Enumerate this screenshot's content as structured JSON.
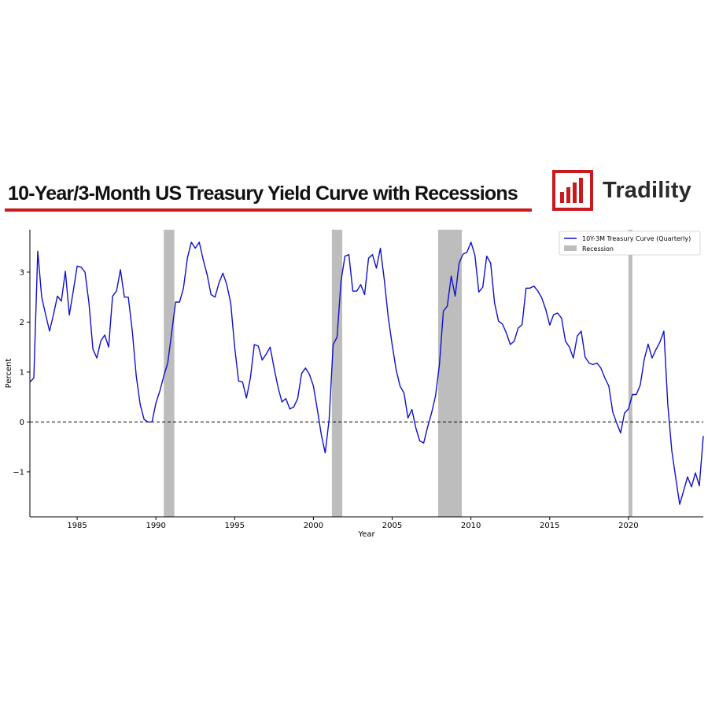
{
  "brand": {
    "name": "Tradility",
    "accent_color": "#c8191f"
  },
  "chart_data": {
    "type": "line",
    "title": "10-Year/3-Month US Treasury Yield Curve with Recessions",
    "xlabel": "Year",
    "ylabel": "Percent",
    "xlim": [
      1982.0,
      2024.75
    ],
    "ylim": [
      -1.9,
      3.85
    ],
    "x_ticks": [
      1985,
      1990,
      1995,
      2000,
      2005,
      2010,
      2015,
      2020
    ],
    "y_ticks": [
      -1,
      0,
      1,
      2,
      3
    ],
    "x_tick_labels": [
      "1985",
      "1990",
      "1995",
      "2000",
      "2005",
      "2010",
      "2015",
      "2020"
    ],
    "y_tick_labels": [
      "−1",
      "0",
      "1",
      "2",
      "3"
    ],
    "grid": false,
    "legend_position": "top-right",
    "reference_line": {
      "y": 0,
      "style": "dashed"
    },
    "series": [
      {
        "name": "10Y-3M Treasury Curve (Quarterly)",
        "color": "#1010cc",
        "x": [
          1982.0,
          1982.25,
          1982.5,
          1982.75,
          1983.0,
          1983.25,
          1983.5,
          1983.75,
          1984.0,
          1984.25,
          1984.5,
          1984.75,
          1985.0,
          1985.25,
          1985.5,
          1985.75,
          1986.0,
          1986.25,
          1986.5,
          1986.75,
          1987.0,
          1987.25,
          1987.5,
          1987.75,
          1988.0,
          1988.25,
          1988.5,
          1988.75,
          1989.0,
          1989.25,
          1989.5,
          1989.75,
          1990.0,
          1990.25,
          1990.5,
          1990.75,
          1991.0,
          1991.25,
          1991.5,
          1991.75,
          1992.0,
          1992.25,
          1992.5,
          1992.75,
          1993.0,
          1993.25,
          1993.5,
          1993.75,
          1994.0,
          1994.25,
          1994.5,
          1994.75,
          1995.0,
          1995.25,
          1995.5,
          1995.75,
          1996.0,
          1996.25,
          1996.5,
          1996.75,
          1997.0,
          1997.25,
          1997.5,
          1997.75,
          1998.0,
          1998.25,
          1998.5,
          1998.75,
          1999.0,
          1999.25,
          1999.5,
          1999.75,
          2000.0,
          2000.25,
          2000.5,
          2000.75,
          2001.0,
          2001.25,
          2001.5,
          2001.75,
          2002.0,
          2002.25,
          2002.5,
          2002.75,
          2003.0,
          2003.25,
          2003.5,
          2003.75,
          2004.0,
          2004.25,
          2004.5,
          2004.75,
          2005.0,
          2005.25,
          2005.5,
          2005.75,
          2006.0,
          2006.25,
          2006.5,
          2006.75,
          2007.0,
          2007.25,
          2007.5,
          2007.75,
          2008.0,
          2008.25,
          2008.5,
          2008.75,
          2009.0,
          2009.25,
          2009.5,
          2009.75,
          2010.0,
          2010.25,
          2010.5,
          2010.75,
          2011.0,
          2011.25,
          2011.5,
          2011.75,
          2012.0,
          2012.25,
          2012.5,
          2012.75,
          2013.0,
          2013.25,
          2013.5,
          2013.75,
          2014.0,
          2014.25,
          2014.5,
          2014.75,
          2015.0,
          2015.25,
          2015.5,
          2015.75,
          2016.0,
          2016.25,
          2016.5,
          2016.75,
          2017.0,
          2017.25,
          2017.5,
          2017.75,
          2018.0,
          2018.25,
          2018.5,
          2018.75,
          2019.0,
          2019.25,
          2019.5,
          2019.75,
          2020.0,
          2020.25,
          2020.5,
          2020.75,
          2021.0,
          2021.25,
          2021.5,
          2021.75,
          2022.0,
          2022.25,
          2022.5,
          2022.75,
          2023.0,
          2023.25,
          2023.5,
          2023.75,
          2024.0,
          2024.25,
          2024.5,
          2024.75
        ],
        "y": [
          0.8,
          0.88,
          3.42,
          2.5,
          2.15,
          1.82,
          2.15,
          2.52,
          2.42,
          3.02,
          2.14,
          2.62,
          3.12,
          3.1,
          3.0,
          2.38,
          1.46,
          1.28,
          1.62,
          1.74,
          1.5,
          2.52,
          2.62,
          3.05,
          2.5,
          2.5,
          1.82,
          0.92,
          0.35,
          0.05,
          0.0,
          0.0,
          0.38,
          0.62,
          0.92,
          1.18,
          1.78,
          2.4,
          2.4,
          2.68,
          3.28,
          3.6,
          3.48,
          3.6,
          3.25,
          2.95,
          2.55,
          2.5,
          2.78,
          2.98,
          2.75,
          2.38,
          1.5,
          0.82,
          0.8,
          0.48,
          0.88,
          1.55,
          1.52,
          1.24,
          1.36,
          1.5,
          1.08,
          0.7,
          0.4,
          0.47,
          0.26,
          0.3,
          0.47,
          0.97,
          1.08,
          0.95,
          0.72,
          0.25,
          -0.25,
          -0.62,
          0.05,
          1.55,
          1.7,
          2.82,
          3.32,
          3.35,
          2.62,
          2.62,
          2.75,
          2.55,
          3.28,
          3.35,
          3.08,
          3.48,
          2.85,
          2.1,
          1.55,
          1.05,
          0.72,
          0.58,
          0.08,
          0.25,
          -0.12,
          -0.38,
          -0.42,
          -0.1,
          0.18,
          0.52,
          1.15,
          2.22,
          2.32,
          2.92,
          2.52,
          3.18,
          3.36,
          3.4,
          3.6,
          3.34,
          2.6,
          2.7,
          3.32,
          3.18,
          2.38,
          2.02,
          1.96,
          1.78,
          1.55,
          1.62,
          1.88,
          1.95,
          2.68,
          2.68,
          2.72,
          2.62,
          2.48,
          2.25,
          1.94,
          2.15,
          2.18,
          2.08,
          1.62,
          1.5,
          1.28,
          1.72,
          1.82,
          1.3,
          1.18,
          1.15,
          1.18,
          1.08,
          0.88,
          0.72,
          0.2,
          -0.02,
          -0.22,
          0.18,
          0.26,
          0.55,
          0.55,
          0.74,
          1.25,
          1.56,
          1.28,
          1.45,
          1.6,
          1.82,
          0.35,
          -0.58,
          -1.12,
          -1.65,
          -1.38,
          -1.1,
          -1.3,
          -1.02,
          -1.28,
          -0.28
        ]
      }
    ],
    "recessions": {
      "name": "Recession",
      "color": "#bdbdbd",
      "spans": [
        [
          1990.5,
          1991.17
        ],
        [
          2001.17,
          2001.83
        ],
        [
          2007.92,
          2009.42
        ],
        [
          2020.0,
          2020.25
        ]
      ]
    }
  }
}
